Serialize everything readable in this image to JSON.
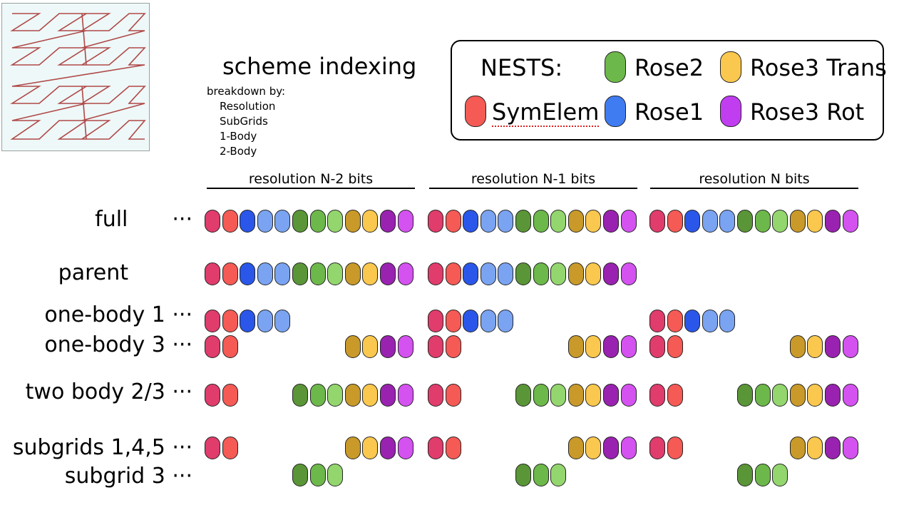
{
  "title": "scheme indexing",
  "breakdown": {
    "heading": "breakdown by:",
    "items": [
      "Resolution",
      "SubGrids",
      "1-Body",
      "2-Body"
    ]
  },
  "legend": {
    "label": "NESTS:",
    "entries": [
      {
        "name": "SymElem",
        "color": "#f55a55"
      },
      {
        "name": "Rose2",
        "color": "#6db84a"
      },
      {
        "name": "Rose1",
        "color": "#3f7cf2"
      },
      {
        "name": "Rose3 Trans",
        "color": "#fac84e"
      },
      {
        "name": "Rose3 Rot",
        "color": "#c03ef0"
      }
    ]
  },
  "resolution_labels": [
    "resolution N-2 bits",
    "resolution N-1 bits",
    "resolution N bits"
  ],
  "pill_colors": [
    "#e03c6c",
    "#f55a55",
    "#2a57ea",
    "#7aa4f2",
    "#7aa4f2",
    "#5a9637",
    "#6db84a",
    "#94d66e",
    "#c99a2a",
    "#fac84e",
    "#9a22b0",
    "#d452f0"
  ],
  "rows": [
    {
      "label": "full",
      "dots": "···",
      "groups": [
        [
          0,
          1,
          2,
          3,
          4,
          5,
          6,
          7,
          8,
          9,
          10,
          11
        ],
        [
          0,
          1,
          2,
          3,
          4,
          5,
          6,
          7,
          8,
          9,
          10,
          11
        ],
        [
          0,
          1,
          2,
          3,
          4,
          5,
          6,
          7,
          8,
          9,
          10,
          11
        ]
      ]
    },
    {
      "label": "parent",
      "dots": "",
      "groups": [
        [
          0,
          1,
          2,
          3,
          4,
          5,
          6,
          7,
          8,
          9,
          10,
          11
        ],
        [
          0,
          1,
          2,
          3,
          4,
          5,
          6,
          7,
          8,
          9,
          10,
          11
        ],
        []
      ]
    },
    {
      "label": "one-body 1",
      "dots": "···",
      "groups": [
        [
          0,
          1,
          2,
          3,
          4
        ],
        [
          0,
          1,
          2,
          3,
          4
        ],
        [
          0,
          1,
          2,
          3,
          4
        ]
      ]
    },
    {
      "label": "one-body 3",
      "dots": "···",
      "groups": [
        [
          0,
          1,
          8,
          9,
          10,
          11
        ],
        [
          0,
          1,
          8,
          9,
          10,
          11
        ],
        [
          0,
          1,
          8,
          9,
          10,
          11
        ]
      ]
    },
    {
      "label": "two body 2/3",
      "dots": "···",
      "groups": [
        [
          0,
          1,
          5,
          6,
          7,
          8,
          9,
          10,
          11
        ],
        [
          0,
          1,
          5,
          6,
          7,
          8,
          9,
          10,
          11
        ],
        [
          0,
          1,
          5,
          6,
          7,
          8,
          9,
          10,
          11
        ]
      ]
    },
    {
      "label": "subgrids 1,4,5",
      "dots": "···",
      "groups": [
        [
          0,
          1,
          8,
          9,
          10,
          11
        ],
        [
          0,
          1,
          8,
          9,
          10,
          11
        ],
        [
          0,
          1,
          8,
          9,
          10,
          11
        ]
      ]
    },
    {
      "label": "subgrid 3",
      "dots": "···",
      "groups": [
        [
          5,
          6,
          7
        ],
        [
          5,
          6,
          7
        ],
        [
          5,
          6,
          7
        ]
      ]
    }
  ]
}
